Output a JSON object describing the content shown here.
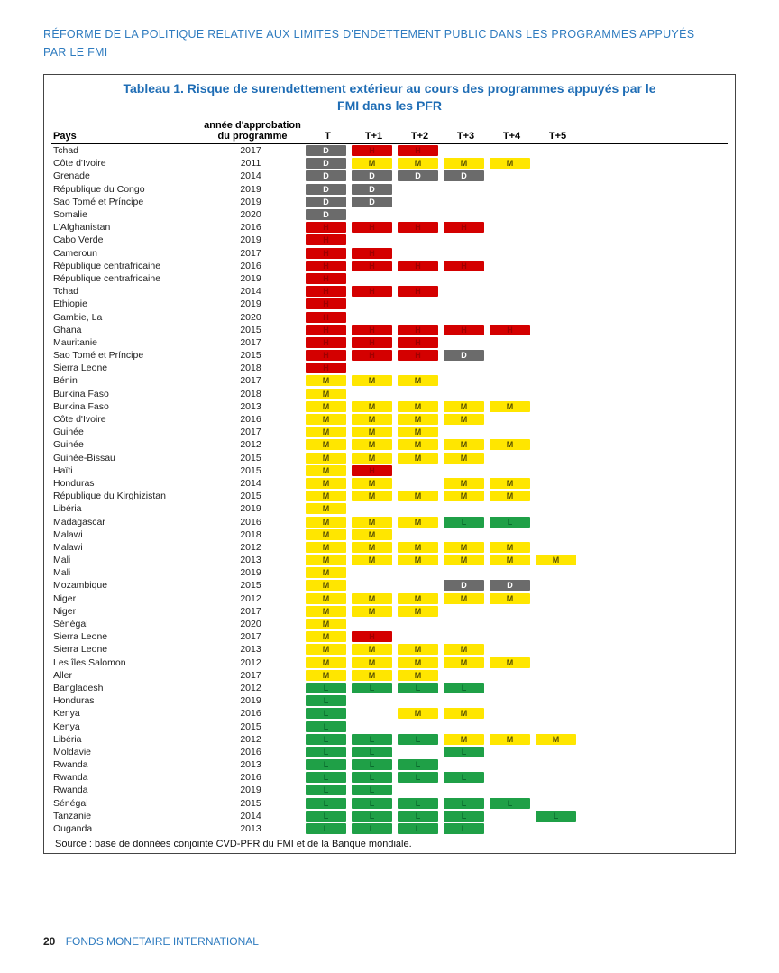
{
  "doc_header_line1": "RÉFORME DE LA POLITIQUE RELATIVE AUX LIMITES D'ENDETTEMENT PUBLIC DANS LES PROGRAMMES APPUYÉS",
  "doc_header_line2": "PAR LE FMI",
  "table_title_line1": "Tableau 1. Risque de surendettement extérieur au cours des programmes appuyés par le",
  "table_title_line2": "FMI dans les PFR",
  "headers": {
    "pays": "Pays",
    "year_line1": "année d'approbation",
    "year_line2": "du programme",
    "t": "T",
    "t1": "T+1",
    "t2": "T+2",
    "t3": "T+3",
    "t4": "T+4",
    "t5": "T+5"
  },
  "colors": {
    "D": "#6b6b6b",
    "H": "#d40000",
    "M": "#ffe600",
    "L": "#1fa047"
  },
  "text_colors": {
    "D": "#ffffff",
    "H": "#a00000",
    "M": "#5a5200",
    "L": "#0a6b2e"
  },
  "rows": [
    {
      "c": "Tchad",
      "y": "2017",
      "v": [
        "D",
        "H",
        "H",
        "",
        "",
        ""
      ]
    },
    {
      "c": "Côte d'Ivoire",
      "y": "2011",
      "v": [
        "D",
        "M",
        "M",
        "M",
        "M",
        ""
      ]
    },
    {
      "c": "Grenade",
      "y": "2014",
      "v": [
        "D",
        "D",
        "D",
        "D",
        "",
        ""
      ]
    },
    {
      "c": "République du Congo",
      "y": "2019",
      "v": [
        "D",
        "D",
        "",
        "",
        "",
        ""
      ]
    },
    {
      "c": "Sao Tomé et Príncipe",
      "y": "2019",
      "v": [
        "D",
        "D",
        "",
        "",
        "",
        ""
      ]
    },
    {
      "c": "Somalie",
      "y": "2020",
      "v": [
        "D",
        "",
        "",
        "",
        "",
        ""
      ]
    },
    {
      "c": "L'Afghanistan",
      "y": "2016",
      "v": [
        "H",
        "H",
        "H",
        "H",
        "",
        ""
      ]
    },
    {
      "c": "Cabo Verde",
      "y": "2019",
      "v": [
        "H",
        "",
        "",
        "",
        "",
        ""
      ]
    },
    {
      "c": "Cameroun",
      "y": "2017",
      "v": [
        "H",
        "H",
        "",
        "",
        "",
        ""
      ]
    },
    {
      "c": "République centrafricaine",
      "y": "2016",
      "v": [
        "H",
        "H",
        "H",
        "H",
        "",
        ""
      ]
    },
    {
      "c": "République centrafricaine",
      "y": "2019",
      "v": [
        "H",
        "",
        "",
        "",
        "",
        ""
      ]
    },
    {
      "c": "Tchad",
      "y": "2014",
      "v": [
        "H",
        "H",
        "H",
        "",
        "",
        ""
      ]
    },
    {
      "c": "Ethiopie",
      "y": "2019",
      "v": [
        "H",
        "",
        "",
        "",
        "",
        ""
      ]
    },
    {
      "c": "Gambie, La",
      "y": "2020",
      "v": [
        "H",
        "",
        "",
        "",
        "",
        ""
      ]
    },
    {
      "c": "Ghana",
      "y": "2015",
      "v": [
        "H",
        "H",
        "H",
        "H",
        "H",
        ""
      ]
    },
    {
      "c": "Mauritanie",
      "y": "2017",
      "v": [
        "H",
        "H",
        "H",
        "",
        "",
        ""
      ]
    },
    {
      "c": "Sao Tomé et Príncipe",
      "y": "2015",
      "v": [
        "H",
        "H",
        "H",
        "D",
        "",
        ""
      ]
    },
    {
      "c": "Sierra Leone",
      "y": "2018",
      "v": [
        "H",
        "",
        "",
        "",
        "",
        ""
      ]
    },
    {
      "c": "Bénin",
      "y": "2017",
      "v": [
        "M",
        "M",
        "M",
        "",
        "",
        ""
      ]
    },
    {
      "c": "Burkina Faso",
      "y": "2018",
      "v": [
        "M",
        "",
        "",
        "",
        "",
        ""
      ]
    },
    {
      "c": "Burkina Faso",
      "y": "2013",
      "v": [
        "M",
        "M",
        "M",
        "M",
        "M",
        ""
      ]
    },
    {
      "c": "Côte d'Ivoire",
      "y": "2016",
      "v": [
        "M",
        "M",
        "M",
        "M",
        "",
        ""
      ]
    },
    {
      "c": "Guinée",
      "y": "2017",
      "v": [
        "M",
        "M",
        "M",
        "",
        "",
        ""
      ]
    },
    {
      "c": "Guinée",
      "y": "2012",
      "v": [
        "M",
        "M",
        "M",
        "M",
        "M",
        ""
      ]
    },
    {
      "c": "Guinée-Bissau",
      "y": "2015",
      "v": [
        "M",
        "M",
        "M",
        "M",
        "",
        ""
      ]
    },
    {
      "c": "Haïti",
      "y": "2015",
      "v": [
        "M",
        "H",
        "",
        "",
        "",
        ""
      ]
    },
    {
      "c": "Honduras",
      "y": "2014",
      "v": [
        "M",
        "M",
        "",
        "M",
        "M",
        ""
      ]
    },
    {
      "c": "République du Kirghizistan",
      "y": "2015",
      "v": [
        "M",
        "M",
        "M",
        "M",
        "M",
        ""
      ]
    },
    {
      "c": "Libéria",
      "y": "2019",
      "v": [
        "M",
        "",
        "",
        "",
        "",
        ""
      ]
    },
    {
      "c": "Madagascar",
      "y": "2016",
      "v": [
        "M",
        "M",
        "M",
        "L",
        "L",
        ""
      ]
    },
    {
      "c": "Malawi",
      "y": "2018",
      "v": [
        "M",
        "M",
        "",
        "",
        "",
        ""
      ]
    },
    {
      "c": "Malawi",
      "y": "2012",
      "v": [
        "M",
        "M",
        "M",
        "M",
        "M",
        ""
      ]
    },
    {
      "c": "Mali",
      "y": "2013",
      "v": [
        "M",
        "M",
        "M",
        "M",
        "M",
        "M"
      ]
    },
    {
      "c": "Mali",
      "y": "2019",
      "v": [
        "M",
        "",
        "",
        "",
        "",
        ""
      ]
    },
    {
      "c": "Mozambique",
      "y": "2015",
      "v": [
        "M",
        "",
        "",
        "D",
        "D",
        ""
      ]
    },
    {
      "c": "Niger",
      "y": "2012",
      "v": [
        "M",
        "M",
        "M",
        "M",
        "M",
        ""
      ]
    },
    {
      "c": "Niger",
      "y": "2017",
      "v": [
        "M",
        "M",
        "M",
        "",
        "",
        ""
      ]
    },
    {
      "c": "Sénégal",
      "y": "2020",
      "v": [
        "M",
        "",
        "",
        "",
        "",
        ""
      ]
    },
    {
      "c": "Sierra Leone",
      "y": "2017",
      "v": [
        "M",
        "H",
        "",
        "",
        "",
        ""
      ]
    },
    {
      "c": "Sierra Leone",
      "y": "2013",
      "v": [
        "M",
        "M",
        "M",
        "M",
        "",
        ""
      ]
    },
    {
      "c": "Les îles Salomon",
      "y": "2012",
      "v": [
        "M",
        "M",
        "M",
        "M",
        "M",
        ""
      ]
    },
    {
      "c": "Aller",
      "y": "2017",
      "v": [
        "M",
        "M",
        "M",
        "",
        "",
        ""
      ]
    },
    {
      "c": "Bangladesh",
      "y": "2012",
      "v": [
        "L",
        "L",
        "L",
        "L",
        "",
        ""
      ]
    },
    {
      "c": "Honduras",
      "y": "2019",
      "v": [
        "L",
        "",
        "",
        "",
        "",
        ""
      ]
    },
    {
      "c": "Kenya",
      "y": "2016",
      "v": [
        "L",
        "",
        "M",
        "M",
        "",
        ""
      ]
    },
    {
      "c": "Kenya",
      "y": "2015",
      "v": [
        "L",
        "",
        "",
        "",
        "",
        ""
      ]
    },
    {
      "c": "Libéria",
      "y": "2012",
      "v": [
        "L",
        "L",
        "L",
        "M",
        "M",
        "M"
      ]
    },
    {
      "c": "Moldavie",
      "y": "2016",
      "v": [
        "L",
        "L",
        "",
        "L",
        "",
        ""
      ]
    },
    {
      "c": "Rwanda",
      "y": "2013",
      "v": [
        "L",
        "L",
        "L",
        "",
        "",
        ""
      ]
    },
    {
      "c": "Rwanda",
      "y": "2016",
      "v": [
        "L",
        "L",
        "L",
        "L",
        "",
        ""
      ]
    },
    {
      "c": "Rwanda",
      "y": "2019",
      "v": [
        "L",
        "L",
        "",
        "",
        "",
        ""
      ]
    },
    {
      "c": "Sénégal",
      "y": "2015",
      "v": [
        "L",
        "L",
        "L",
        "L",
        "L",
        ""
      ]
    },
    {
      "c": "Tanzanie",
      "y": "2014",
      "v": [
        "L",
        "L",
        "L",
        "L",
        "",
        "L"
      ]
    },
    {
      "c": "Ouganda",
      "y": "2013",
      "v": [
        "L",
        "L",
        "L",
        "L",
        "",
        ""
      ]
    }
  ],
  "source": "Source : base de données conjointe CVD-PFR du FMI et de la Banque mondiale.",
  "footer_page": "20",
  "footer_text": "FONDS MONETAIRE INTERNATIONAL"
}
